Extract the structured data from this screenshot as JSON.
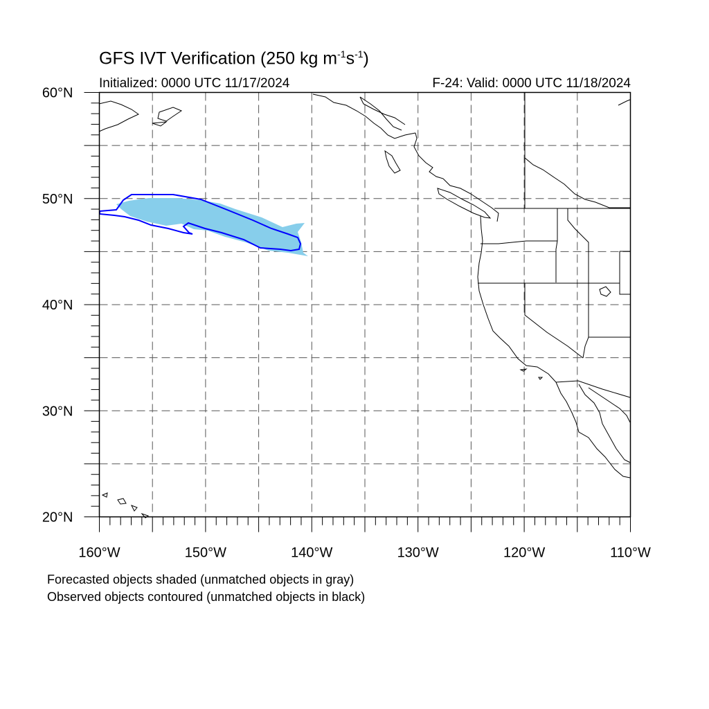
{
  "header": {
    "title_main": "GFS IVT Verification (250 kg m",
    "title_exp1": "-1",
    "title_mid": "s",
    "title_exp2": "-1",
    "title_end": ")",
    "initialized": "Initialized: 0000 UTC 11/17/2024",
    "valid": "F-24: Valid: 0000 UTC 11/18/2024"
  },
  "axes": {
    "lat_labels": [
      "60°N",
      "50°N",
      "40°N",
      "30°N",
      "20°N"
    ],
    "lon_labels": [
      "160°W",
      "150°W",
      "140°W",
      "130°W",
      "120°W",
      "110°W"
    ]
  },
  "map": {
    "lat_range": [
      20,
      60
    ],
    "lon_range": [
      -160,
      -110
    ],
    "grid_spacing_deg": 5,
    "grid_style": "dashed",
    "colors": {
      "forecast_fill": "#87ceeb",
      "observed_contour": "#0000ff",
      "coastline": "#000000",
      "grid": "#555555"
    }
  },
  "captions": {
    "line1": "Forecasted objects shaded (unmatched objects in gray)",
    "line2": "Observed objects contoured (unmatched objects in black)"
  }
}
